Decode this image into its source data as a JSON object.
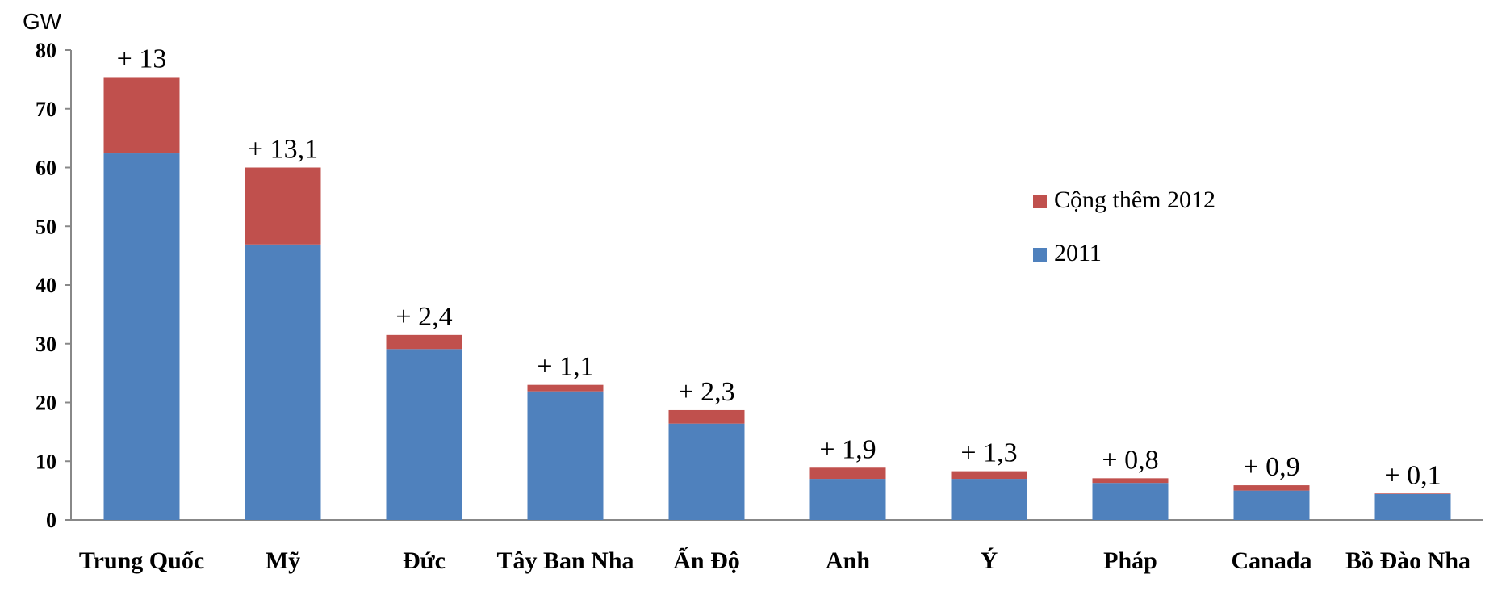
{
  "chart_data": {
    "type": "bar",
    "stacked": true,
    "unit_label": "GW",
    "categories": [
      "Trung Quốc",
      "Mỹ",
      "Đức",
      "Tây Ban Nha",
      "Ấn Độ",
      "Anh",
      "Ý",
      "Pháp",
      "Canada",
      "Bồ Đào Nha"
    ],
    "series": [
      {
        "name": "2011",
        "color": "#4F81BD",
        "values": [
          62.4,
          46.9,
          29.1,
          21.9,
          16.4,
          7.0,
          7.0,
          6.3,
          5.0,
          4.4
        ]
      },
      {
        "name": "Cộng thêm 2012",
        "color": "#C0504D",
        "values": [
          13,
          13.1,
          2.4,
          1.1,
          2.3,
          1.9,
          1.3,
          0.8,
          0.9,
          0.1
        ]
      }
    ],
    "data_labels": [
      "+ 13",
      "+ 13,1",
      "+ 2,4",
      "+ 1,1",
      "+ 2,3",
      "+ 1,9",
      "+ 1,3",
      "+ 0,8",
      "+ 0,9",
      "+ 0,1"
    ],
    "yticks": [
      0,
      10,
      20,
      30,
      40,
      50,
      60,
      70,
      80
    ],
    "ylim": [
      0,
      80
    ],
    "grid": false,
    "legend_position": "right",
    "legend_order": [
      "Cộng thêm 2012",
      "2011"
    ]
  }
}
